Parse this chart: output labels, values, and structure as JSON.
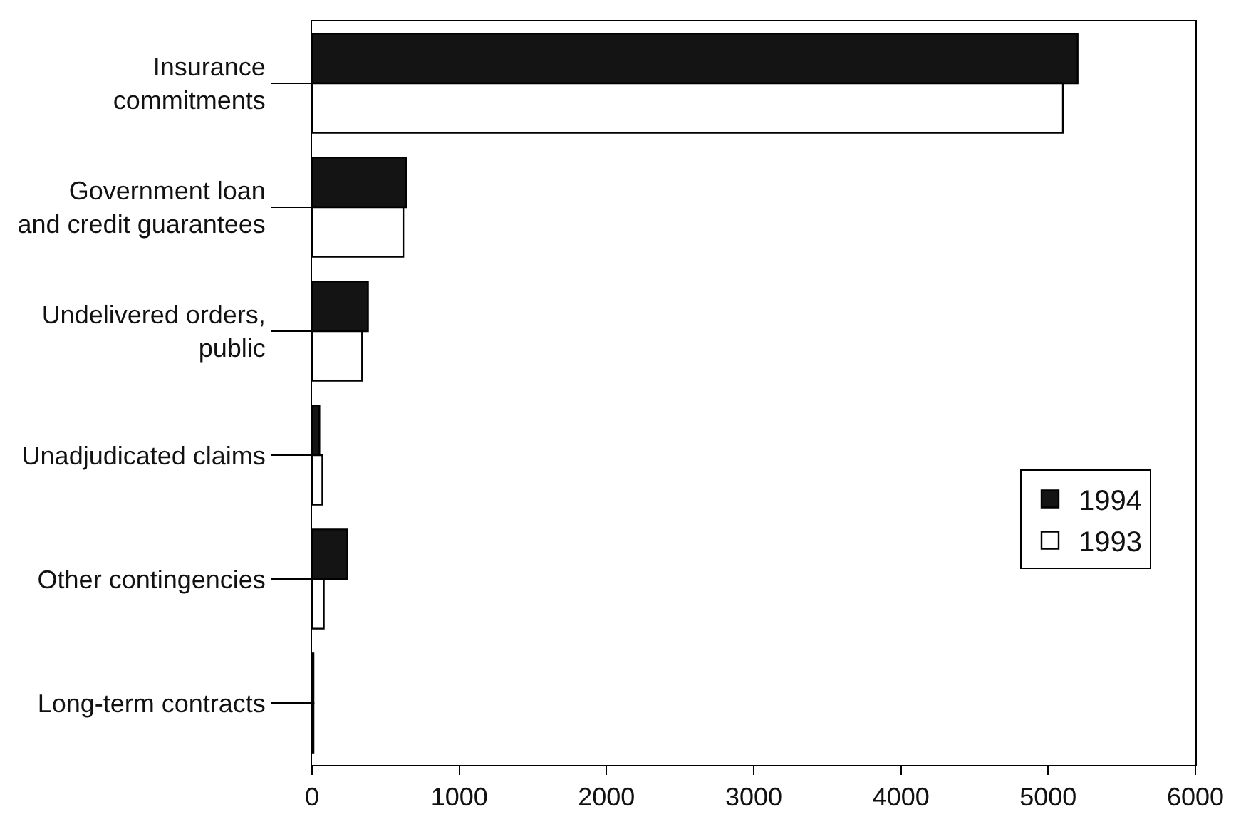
{
  "chart_data": {
    "type": "bar",
    "orientation": "horizontal",
    "categories": [
      "Insurance\ncommitments",
      "Government loan\nand credit guarantees",
      "Undelivered orders,\npublic",
      "Unadjudicated claims",
      "Other contingencies",
      "Long-term contracts"
    ],
    "series": [
      {
        "name": "1994",
        "color": "#141414",
        "values": [
          5200,
          640,
          380,
          50,
          240,
          10
        ]
      },
      {
        "name": "1993",
        "color": "#ffffff",
        "values": [
          5100,
          620,
          340,
          70,
          80,
          10
        ]
      }
    ],
    "xlim": [
      0,
      6000
    ],
    "xticks": [
      0,
      1000,
      2000,
      3000,
      4000,
      5000,
      6000
    ],
    "legend": "right"
  }
}
